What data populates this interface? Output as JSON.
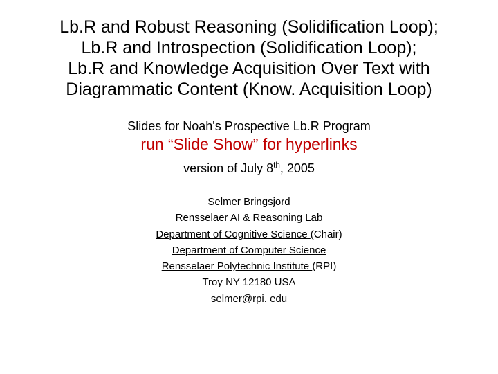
{
  "colors": {
    "background": "#ffffff",
    "text": "#000000",
    "run_line": "#c00000"
  },
  "title": {
    "line1": "Lb.R and Robust Reasoning (Solidification Loop);",
    "line2": "Lb.R and Introspection (Solidification Loop);",
    "line3": "Lb.R and Knowledge Acquisition Over Text with",
    "line4": "Diagrammatic Content (Know. Acquisition Loop)"
  },
  "subtitle": "Slides for Noah's Prospective Lb.R Program",
  "run_line": "run “Slide Show” for hyperlinks",
  "version_prefix": "version of July 8",
  "version_ord": "th",
  "version_suffix": ", 2005",
  "affil": {
    "author": "Selmer Bringsjord",
    "lab": "Rensselaer AI & Reasoning Lab",
    "dept_cogsci": "Department of Cognitive Science ",
    "chair": "(Chair)",
    "dept_cs": "Department of Computer Science",
    "rpi_u": "Rensselaer Polytechnic Institute ",
    "rpi_tail": "(RPI)",
    "addr": "Troy NY 12180 USA",
    "email": "selmer@rpi. edu"
  }
}
